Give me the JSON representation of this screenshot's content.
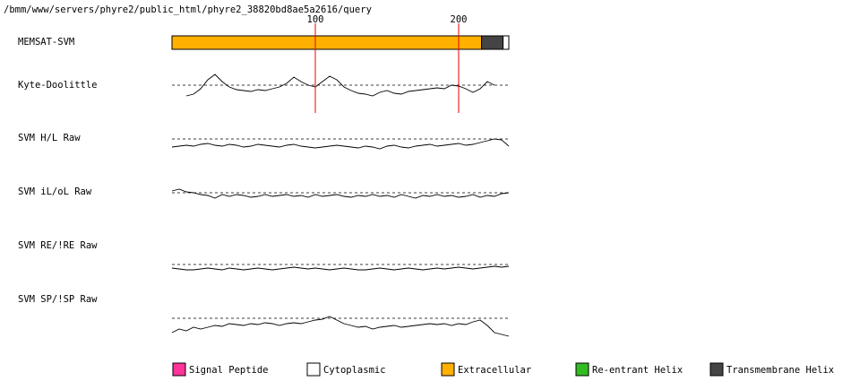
{
  "path": "/bmm/www/servers/phyre2/public_html/phyre2_38820bd8ae5a2616/query",
  "chart_data": {
    "type": "track",
    "xlim": [
      0,
      235
    ],
    "xticks": [
      100,
      200
    ],
    "legend": [
      {
        "label": "Signal Peptide",
        "color": "#ff3399"
      },
      {
        "label": "Cytoplasmic",
        "color": "#ffffff"
      },
      {
        "label": "Extracellular",
        "color": "#ffb000"
      },
      {
        "label": "Re-entrant Helix",
        "color": "#33bb22"
      },
      {
        "label": "Transmembrane Helix",
        "color": "#444444"
      }
    ],
    "topology": {
      "name": "MEMSAT-SVM",
      "segments": [
        {
          "start": 0,
          "end": 216,
          "legend": 2
        },
        {
          "start": 216,
          "end": 231,
          "legend": 4
        },
        {
          "start": 231,
          "end": 235,
          "legend": 1
        }
      ]
    },
    "traces": [
      {
        "name": "Kyte-Doolittle",
        "ylim": [
          -1,
          1
        ],
        "threshold": 0,
        "x": [
          10,
          15,
          20,
          25,
          30,
          35,
          40,
          45,
          50,
          55,
          60,
          65,
          70,
          75,
          80,
          85,
          90,
          95,
          100,
          105,
          110,
          115,
          120,
          125,
          130,
          135,
          140,
          145,
          150,
          155,
          160,
          165,
          170,
          175,
          180,
          185,
          190,
          195,
          200,
          205,
          210,
          215,
          220,
          225
        ],
        "values": [
          -0.6,
          -0.5,
          -0.2,
          0.3,
          0.6,
          0.2,
          -0.1,
          -0.25,
          -0.3,
          -0.35,
          -0.25,
          -0.3,
          -0.2,
          -0.1,
          0.1,
          0.45,
          0.2,
          0.0,
          -0.1,
          0.2,
          0.5,
          0.3,
          -0.1,
          -0.3,
          -0.45,
          -0.5,
          -0.6,
          -0.4,
          -0.3,
          -0.45,
          -0.5,
          -0.35,
          -0.3,
          -0.25,
          -0.2,
          -0.15,
          -0.2,
          0.0,
          -0.05,
          -0.2,
          -0.4,
          -0.2,
          0.2,
          0.0
        ]
      },
      {
        "name": "SVM H/L Raw",
        "ylim": [
          -1,
          1
        ],
        "threshold": 0,
        "x": [
          0,
          5,
          10,
          15,
          20,
          25,
          30,
          35,
          40,
          45,
          50,
          55,
          60,
          65,
          70,
          75,
          80,
          85,
          90,
          95,
          100,
          105,
          110,
          115,
          120,
          125,
          130,
          135,
          140,
          145,
          150,
          155,
          160,
          165,
          170,
          175,
          180,
          185,
          190,
          195,
          200,
          205,
          210,
          215,
          220,
          225,
          230,
          235
        ],
        "values": [
          -0.45,
          -0.4,
          -0.35,
          -0.4,
          -0.3,
          -0.25,
          -0.35,
          -0.4,
          -0.3,
          -0.35,
          -0.45,
          -0.4,
          -0.3,
          -0.35,
          -0.4,
          -0.45,
          -0.35,
          -0.3,
          -0.4,
          -0.45,
          -0.5,
          -0.45,
          -0.4,
          -0.35,
          -0.4,
          -0.45,
          -0.5,
          -0.4,
          -0.45,
          -0.55,
          -0.4,
          -0.35,
          -0.45,
          -0.5,
          -0.4,
          -0.35,
          -0.3,
          -0.4,
          -0.35,
          -0.3,
          -0.25,
          -0.35,
          -0.3,
          -0.2,
          -0.1,
          0.0,
          -0.05,
          -0.4
        ]
      },
      {
        "name": "SVM iL/oL Raw",
        "ylim": [
          -1,
          1
        ],
        "threshold": 0,
        "x": [
          0,
          5,
          10,
          15,
          20,
          25,
          30,
          35,
          40,
          45,
          50,
          55,
          60,
          65,
          70,
          75,
          80,
          85,
          90,
          95,
          100,
          105,
          110,
          115,
          120,
          125,
          130,
          135,
          140,
          145,
          150,
          155,
          160,
          165,
          170,
          175,
          180,
          185,
          190,
          195,
          200,
          205,
          210,
          215,
          220,
          225,
          230,
          235
        ],
        "values": [
          0.1,
          0.2,
          0.05,
          0.0,
          -0.1,
          -0.15,
          -0.3,
          -0.1,
          -0.2,
          -0.1,
          -0.15,
          -0.25,
          -0.2,
          -0.1,
          -0.2,
          -0.15,
          -0.1,
          -0.2,
          -0.15,
          -0.25,
          -0.1,
          -0.2,
          -0.15,
          -0.1,
          -0.2,
          -0.25,
          -0.15,
          -0.2,
          -0.1,
          -0.2,
          -0.15,
          -0.25,
          -0.1,
          -0.2,
          -0.3,
          -0.15,
          -0.2,
          -0.1,
          -0.2,
          -0.15,
          -0.25,
          -0.2,
          -0.1,
          -0.25,
          -0.15,
          -0.2,
          -0.05,
          0.0
        ]
      },
      {
        "name": "SVM RE/!RE Raw",
        "ylim": [
          -1,
          1
        ],
        "threshold": 0,
        "x": [
          0,
          5,
          10,
          15,
          20,
          25,
          30,
          35,
          40,
          45,
          50,
          55,
          60,
          65,
          70,
          75,
          80,
          85,
          90,
          95,
          100,
          105,
          110,
          115,
          120,
          125,
          130,
          135,
          140,
          145,
          150,
          155,
          160,
          165,
          170,
          175,
          180,
          185,
          190,
          195,
          200,
          205,
          210,
          215,
          220,
          225,
          230,
          235
        ],
        "values": [
          -0.2,
          -0.25,
          -0.3,
          -0.3,
          -0.25,
          -0.2,
          -0.25,
          -0.3,
          -0.2,
          -0.25,
          -0.3,
          -0.25,
          -0.2,
          -0.25,
          -0.3,
          -0.25,
          -0.2,
          -0.15,
          -0.2,
          -0.25,
          -0.2,
          -0.25,
          -0.3,
          -0.25,
          -0.2,
          -0.25,
          -0.3,
          -0.3,
          -0.25,
          -0.2,
          -0.25,
          -0.3,
          -0.25,
          -0.2,
          -0.25,
          -0.3,
          -0.25,
          -0.2,
          -0.25,
          -0.2,
          -0.15,
          -0.2,
          -0.25,
          -0.2,
          -0.15,
          -0.1,
          -0.15,
          -0.1
        ]
      },
      {
        "name": "SVM SP/!SP Raw",
        "ylim": [
          -1,
          1
        ],
        "threshold": 0,
        "x": [
          0,
          5,
          10,
          15,
          20,
          25,
          30,
          35,
          40,
          45,
          50,
          55,
          60,
          65,
          70,
          75,
          80,
          85,
          90,
          95,
          100,
          105,
          110,
          115,
          120,
          125,
          130,
          135,
          140,
          145,
          150,
          155,
          160,
          165,
          170,
          175,
          180,
          185,
          190,
          195,
          200,
          205,
          210,
          215,
          220,
          225,
          230,
          235
        ],
        "values": [
          -0.8,
          -0.6,
          -0.7,
          -0.5,
          -0.6,
          -0.5,
          -0.4,
          -0.45,
          -0.3,
          -0.35,
          -0.4,
          -0.3,
          -0.35,
          -0.25,
          -0.3,
          -0.4,
          -0.3,
          -0.25,
          -0.3,
          -0.2,
          -0.1,
          -0.05,
          0.1,
          -0.1,
          -0.3,
          -0.4,
          -0.5,
          -0.45,
          -0.6,
          -0.5,
          -0.45,
          -0.4,
          -0.5,
          -0.45,
          -0.4,
          -0.35,
          -0.3,
          -0.35,
          -0.3,
          -0.4,
          -0.3,
          -0.35,
          -0.2,
          -0.1,
          -0.4,
          -0.8,
          -0.9,
          -1.0
        ]
      }
    ]
  }
}
